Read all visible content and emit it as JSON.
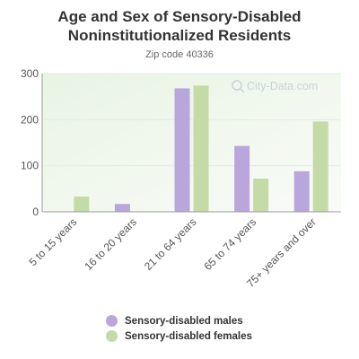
{
  "header": {
    "title_line1": "Age and Sex of Sensory-Disabled",
    "title_line2": "Noninstitutionalized Residents",
    "subtitle": "Zip code 40336"
  },
  "watermark": {
    "text": "City-Data.com",
    "icon": "search-icon"
  },
  "colors": {
    "males": "#b9a7dc",
    "females": "#c4dba8",
    "axis": "#999999",
    "grid": "#e3ece0",
    "plot_bg_top_left": "#e9f4e4",
    "plot_bg_bottom_right": "#f9fbf8"
  },
  "chart_data": {
    "type": "bar",
    "categories": [
      "5 to 15 years",
      "16 to 20 years",
      "21 to 64 years",
      "65 to 74 years",
      "75+ years and over"
    ],
    "series": [
      {
        "name": "Sensory-disabled males",
        "values": [
          0,
          17,
          268,
          143,
          88
        ]
      },
      {
        "name": "Sensory-disabled females",
        "values": [
          33,
          0,
          274,
          72,
          196
        ]
      }
    ],
    "ylim": [
      0,
      300
    ],
    "yticks": [
      "0",
      "100",
      "200",
      "300"
    ],
    "grid": true,
    "legend_position": "bottom"
  }
}
